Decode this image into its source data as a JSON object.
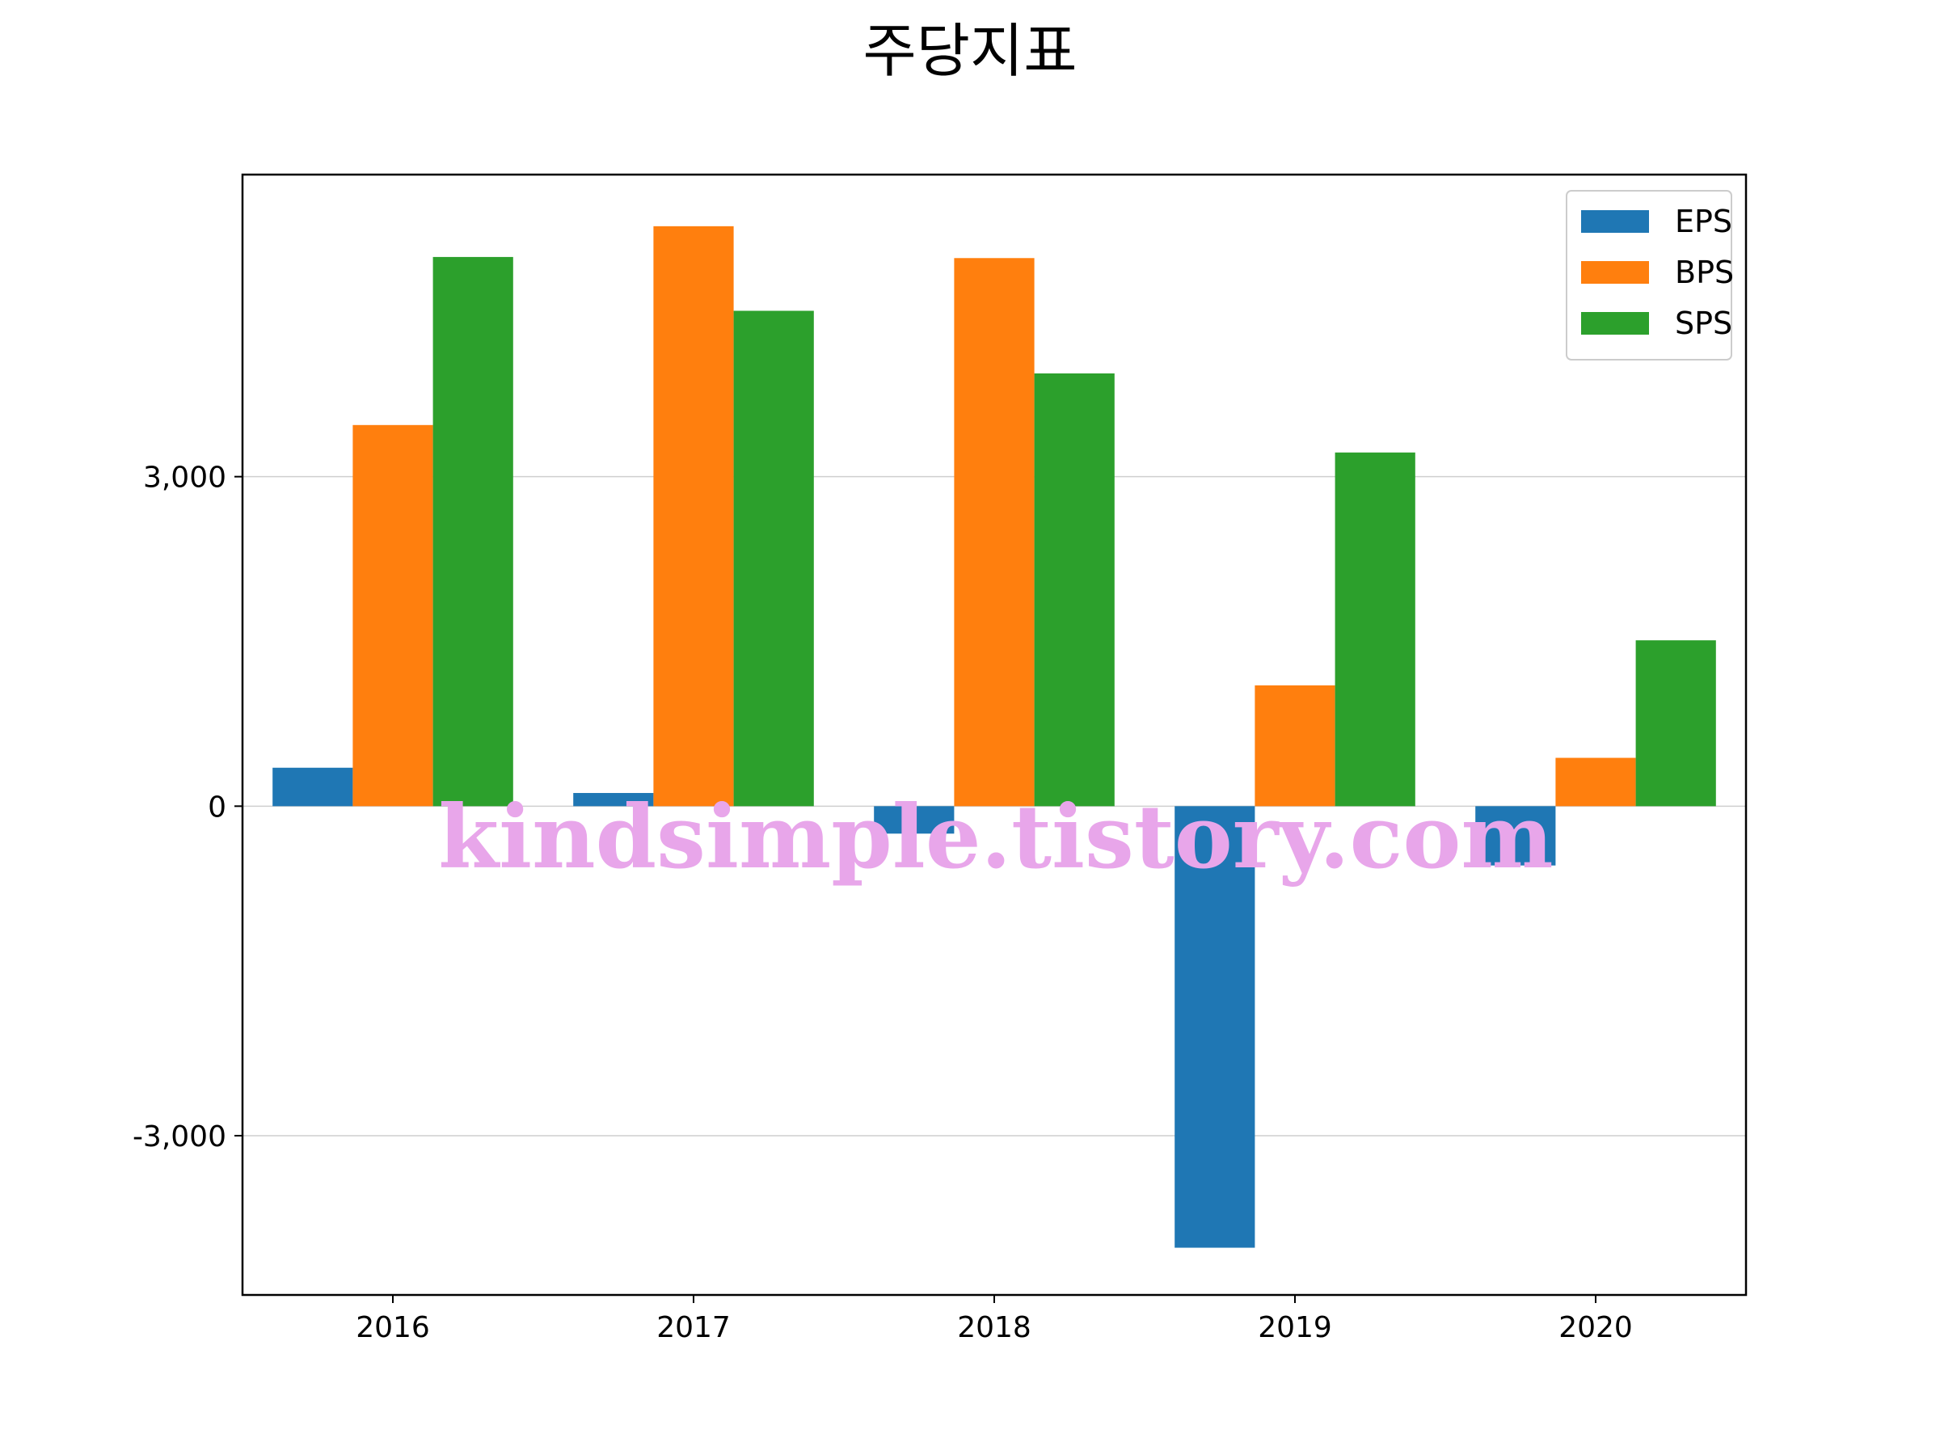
{
  "chart_data": {
    "type": "bar",
    "title": "주당지표",
    "categories": [
      "2016",
      "2017",
      "2018",
      "2019",
      "2020"
    ],
    "series": [
      {
        "name": "EPS",
        "color": "#1f77b4",
        "values": [
          350,
          120,
          -250,
          -4020,
          -540
        ]
      },
      {
        "name": "BPS",
        "color": "#ff7f0e",
        "values": [
          3470,
          5280,
          4990,
          1100,
          440
        ]
      },
      {
        "name": "SPS",
        "color": "#2ca02c",
        "values": [
          5000,
          4510,
          3940,
          3220,
          1510
        ]
      }
    ],
    "ylim": [
      -4450,
      5750
    ],
    "yticks": [
      {
        "value": -3000,
        "label": "-3,000"
      },
      {
        "value": 0,
        "label": "0"
      },
      {
        "value": 3000,
        "label": "3,000"
      }
    ],
    "grid": "y",
    "legend": "top-right",
    "xlabel": "",
    "ylabel": ""
  },
  "watermark": "kindsimple.tistory.com"
}
